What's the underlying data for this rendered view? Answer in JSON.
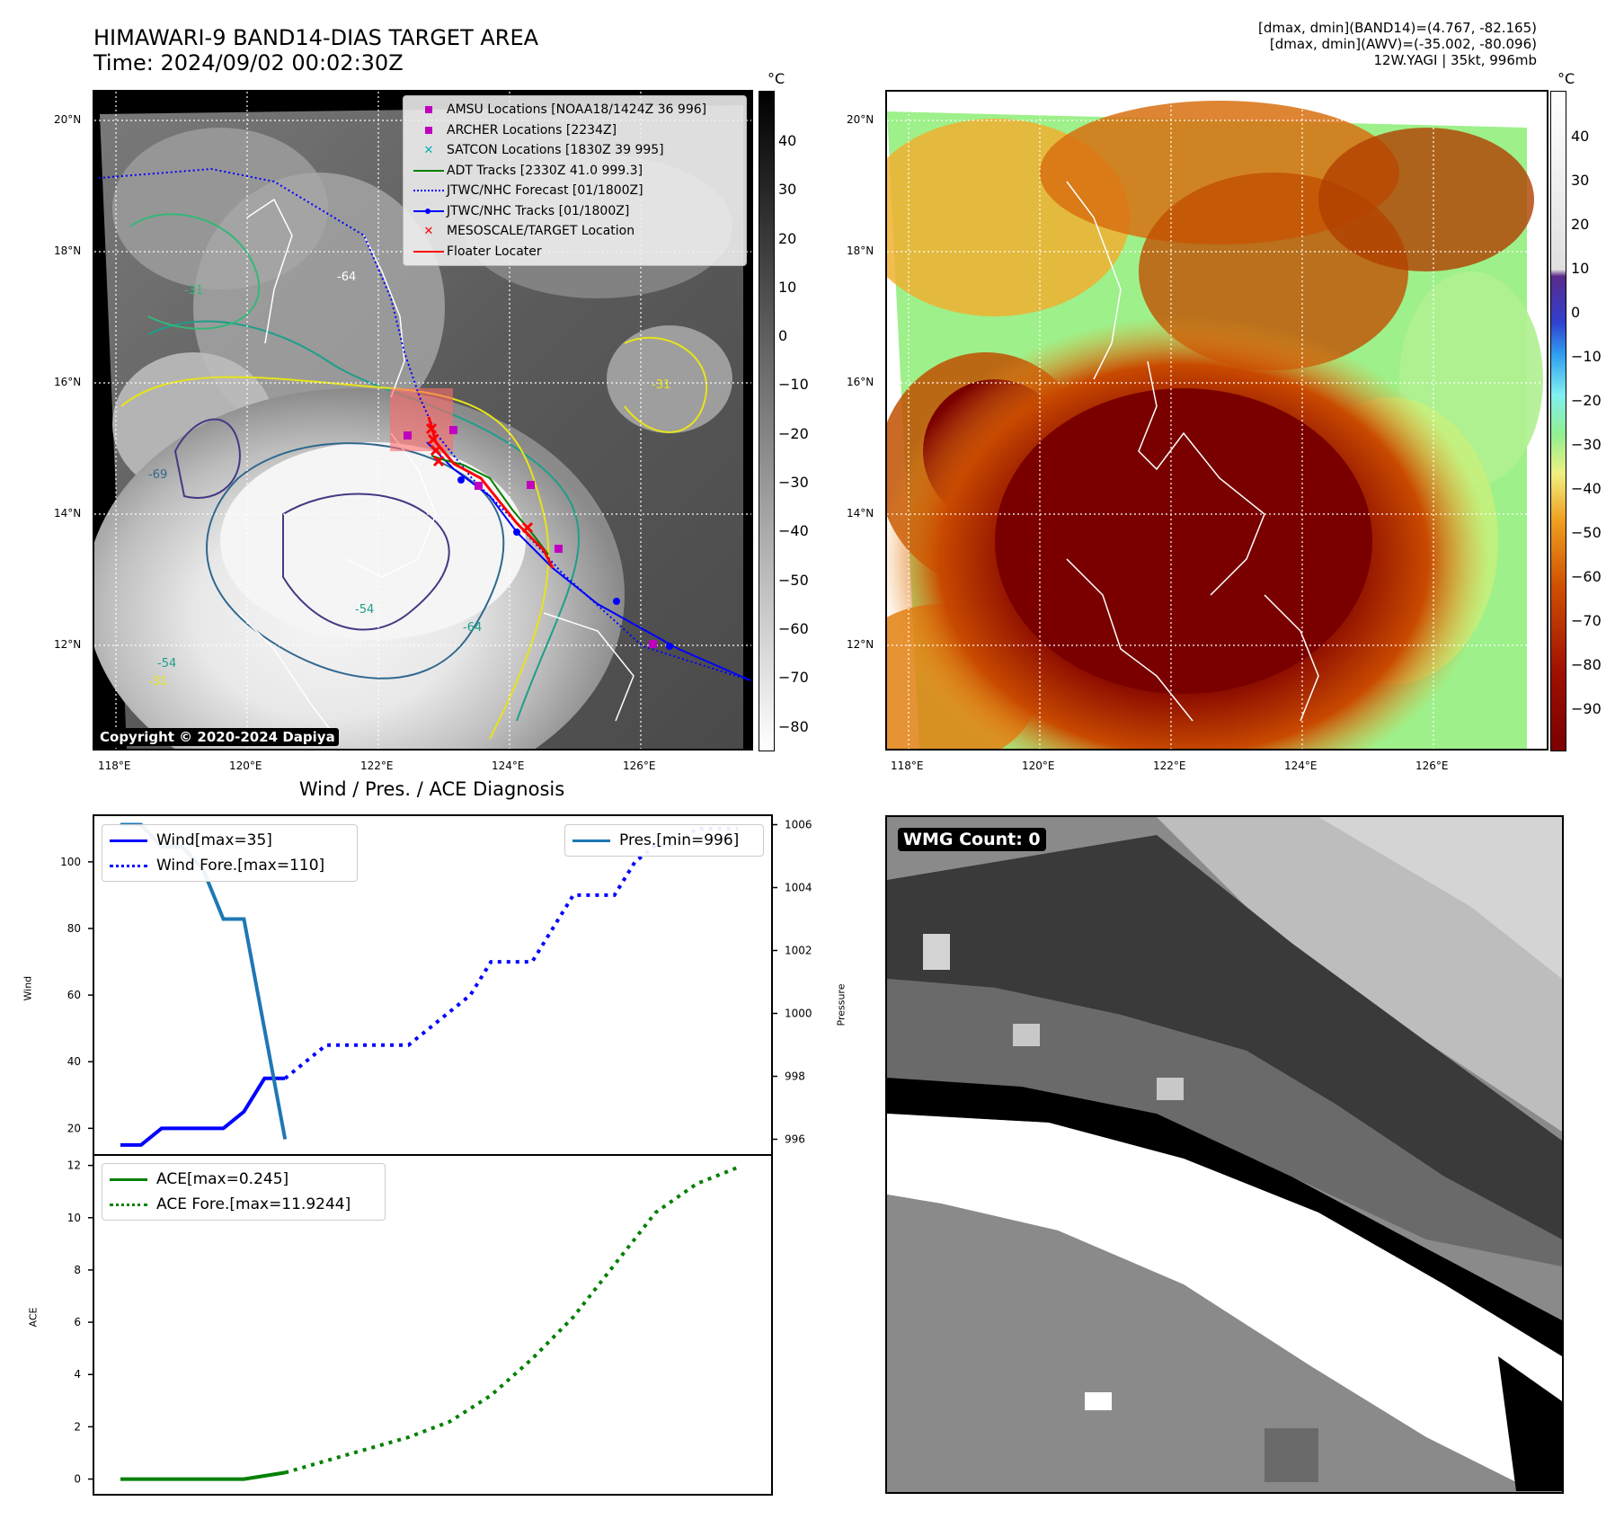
{
  "header": {
    "title_line1": "HIMAWARI-9 BAND14-DIAS TARGET AREA",
    "title_line2": "Time: 2024/09/02 00:02:30Z",
    "info_line1": "[dmax, dmin](BAND14)=(4.767, -82.165)",
    "info_line2": "[dmax, dmin](AWV)=(-35.002, -80.096)",
    "info_line3": "12W.YAGI | 35kt, 996mb"
  },
  "map": {
    "lat_ticks": [
      "20°N",
      "18°N",
      "16°N",
      "14°N",
      "12°N"
    ],
    "lon_ticks": [
      "118°E",
      "120°E",
      "122°E",
      "124°E",
      "126°E"
    ],
    "contour_labels": [
      "-31",
      "-54",
      "-64",
      "-69",
      "-31",
      "-54",
      "-64",
      "-31"
    ],
    "copyright": "Copyright © 2020-2024 Dapiya",
    "legend": [
      {
        "label": "AMSU Locations [NOAA18/1424Z 36 996]",
        "color": "#c000c0",
        "marker": "square"
      },
      {
        "label": "ARCHER Locations [2234Z]",
        "color": "#c000c0",
        "marker": "square"
      },
      {
        "label": "SATCON Locations [1830Z 39 995]",
        "color": "#00b0b0",
        "marker": "x"
      },
      {
        "label": "ADT Tracks [2330Z 41.0 999.3]",
        "color": "#008000",
        "marker": "line"
      },
      {
        "label": "JTWC/NHC Forecast [01/1800Z]",
        "color": "#0000ff",
        "marker": "dotted"
      },
      {
        "label": "JTWC/NHC Tracks [01/1800Z]",
        "color": "#0000ff",
        "marker": "line-dot"
      },
      {
        "label": "MESOSCALE/TARGET Location",
        "color": "#ff0000",
        "marker": "x"
      },
      {
        "label": "Floater Locater",
        "color": "#ff0000",
        "marker": "line"
      }
    ]
  },
  "colorbar_left": {
    "unit": "°C",
    "ticks": [
      "40",
      "30",
      "20",
      "10",
      "0",
      "−10",
      "−20",
      "−30",
      "−40",
      "−50",
      "−60",
      "−70",
      "−80"
    ]
  },
  "colorbar_right": {
    "unit": "°C",
    "ticks": [
      "40",
      "30",
      "20",
      "10",
      "0",
      "−10",
      "−20",
      "−30",
      "−40",
      "−50",
      "−60",
      "−70",
      "−80",
      "−90"
    ]
  },
  "diagnosis": {
    "title": "Wind / Pres. / ACE Diagnosis",
    "wind_ylabel": "Wind",
    "pres_ylabel": "Pressure",
    "ace_ylabel": "ACE",
    "legend_wind": "Wind[max=35]",
    "legend_wind_fore": "Wind Fore.[max=110]",
    "legend_pres": "Pres.[min=996]",
    "legend_ace": "ACE[max=0.245]",
    "legend_ace_fore": "ACE Fore.[max=11.9244]"
  },
  "wmg": {
    "label": "WMG Count: 0"
  },
  "chart_data": [
    {
      "type": "line",
      "title": "Wind / Pres. / ACE Diagnosis",
      "ylabel": "Wind",
      "ylim": [
        12,
        114
      ],
      "y_ticks": [
        20,
        40,
        60,
        80,
        100
      ],
      "series": [
        {
          "name": "Wind[max=35]",
          "color": "#0000ff",
          "style": "solid",
          "x": [
            0,
            1,
            2,
            3,
            4,
            5,
            6,
            7,
            8
          ],
          "values": [
            15,
            15,
            20,
            20,
            20,
            20,
            25,
            35,
            35
          ]
        },
        {
          "name": "Wind Fore.[max=110]",
          "color": "#0000ff",
          "style": "dotted",
          "x": [
            8,
            9,
            10,
            11,
            12,
            13,
            14,
            15,
            16,
            17,
            18,
            19,
            20,
            21,
            22,
            23,
            24,
            25,
            26,
            27,
            28,
            29,
            30
          ],
          "values": [
            35,
            40,
            45,
            45,
            45,
            45,
            45,
            50,
            55,
            60,
            70,
            70,
            70,
            80,
            90,
            90,
            90,
            100,
            105,
            105,
            110,
            110,
            110
          ]
        }
      ]
    },
    {
      "type": "line",
      "ylabel": "Pressure",
      "ylim": [
        995.5,
        1006.3
      ],
      "y_ticks": [
        996,
        998,
        1000,
        1002,
        1004,
        1006
      ],
      "series": [
        {
          "name": "Pres.[min=996]",
          "color": "#1f77b4",
          "style": "solid",
          "x": [
            0,
            1,
            2,
            3,
            4,
            5,
            6,
            7,
            8
          ],
          "values": [
            1006,
            1006,
            1005.3,
            1005.3,
            1004.6,
            1003,
            1003,
            999.5,
            996
          ]
        }
      ]
    },
    {
      "type": "line",
      "ylabel": "ACE",
      "ylim": [
        -0.6,
        12.4
      ],
      "y_ticks": [
        0,
        2,
        4,
        6,
        8,
        10,
        12
      ],
      "series": [
        {
          "name": "ACE[max=0.245]",
          "color": "#008000",
          "style": "solid",
          "x": [
            0,
            2,
            4,
            6,
            8
          ],
          "values": [
            0,
            0,
            0,
            0,
            0.245
          ]
        },
        {
          "name": "ACE Fore.[max=11.9244]",
          "color": "#008000",
          "style": "dotted",
          "x": [
            8,
            10,
            12,
            14,
            16,
            18,
            20,
            22,
            24,
            26,
            28,
            30
          ],
          "values": [
            0.245,
            0.7,
            1.15,
            1.6,
            2.2,
            3.2,
            4.6,
            6.2,
            8.2,
            10.2,
            11.3,
            11.9244
          ]
        }
      ]
    }
  ]
}
